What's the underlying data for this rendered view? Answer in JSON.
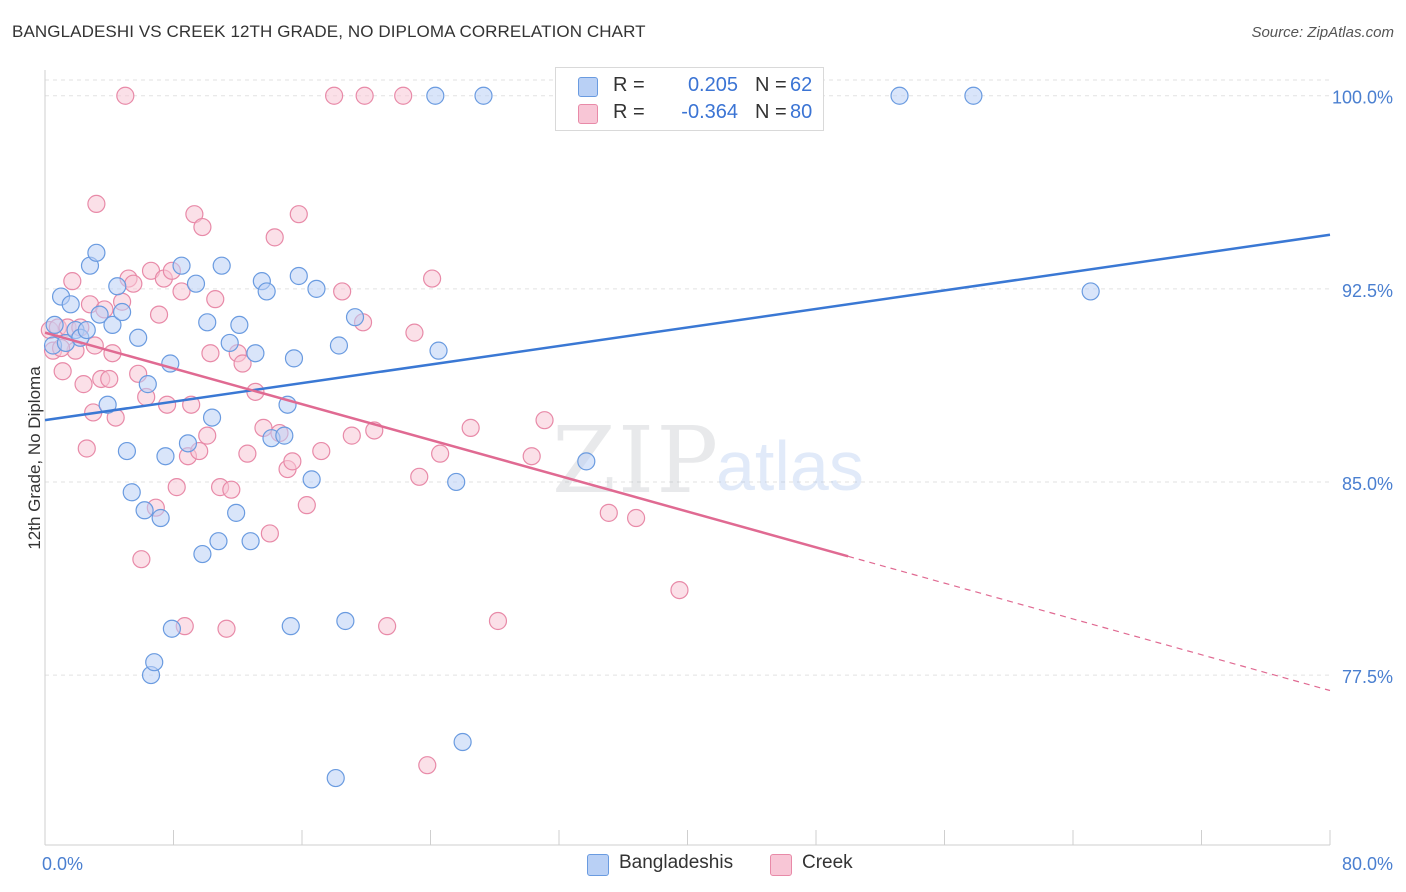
{
  "title": "BANGLADESHI VS CREEK 12TH GRADE, NO DIPLOMA CORRELATION CHART",
  "source": "Source: ZipAtlas.com",
  "watermark": {
    "zip": "ZIP",
    "atlas": "atlas"
  },
  "legend": {
    "r_label": "R =",
    "n_label": "N =",
    "rows": [
      {
        "r": "0.205",
        "n": "62",
        "fill": "#b9d0f5",
        "stroke": "#6a9be0"
      },
      {
        "r": "-0.364",
        "n": "80",
        "fill": "#f8c6d6",
        "stroke": "#e88aa8"
      }
    ]
  },
  "bottom_legend": [
    {
      "label": "Bangladeshis",
      "fill": "#b9d0f5",
      "stroke": "#6a9be0"
    },
    {
      "label": "Creek",
      "fill": "#f8c6d6",
      "stroke": "#e88aa8"
    }
  ],
  "chart_data": {
    "type": "scatter",
    "title": "BANGLADESHI VS CREEK 12TH GRADE, NO DIPLOMA CORRELATION CHART",
    "xlabel": "",
    "ylabel": "12th Grade, No Diploma",
    "xlim": [
      0,
      80
    ],
    "ylim": [
      70.9,
      101.0
    ],
    "x_tick_labels": [
      "0.0%",
      "80.0%"
    ],
    "y_ticks": [
      {
        "value": 100.0,
        "label": "100.0%"
      },
      {
        "value": 92.5,
        "label": "92.5%"
      },
      {
        "value": 85.0,
        "label": "85.0%"
      },
      {
        "value": 77.5,
        "label": "77.5%"
      }
    ],
    "grid": "horizontal dashed",
    "series": [
      {
        "name": "Bangladeshis",
        "color": "#6a9be0",
        "fill": "#b9d0f5",
        "trend": {
          "x": [
            0,
            80
          ],
          "y": [
            87.4,
            94.6
          ],
          "dashed_from": null,
          "line_color": "#3a78d4"
        },
        "points": [
          [
            0.5,
            90.3
          ],
          [
            0.6,
            91.1
          ],
          [
            1.0,
            92.2
          ],
          [
            1.3,
            90.4
          ],
          [
            1.6,
            91.9
          ],
          [
            1.9,
            90.9
          ],
          [
            2.2,
            90.6
          ],
          [
            2.6,
            90.9
          ],
          [
            2.8,
            93.4
          ],
          [
            3.2,
            93.9
          ],
          [
            3.4,
            91.5
          ],
          [
            3.9,
            88.0
          ],
          [
            4.2,
            91.1
          ],
          [
            4.5,
            92.6
          ],
          [
            4.8,
            91.6
          ],
          [
            5.1,
            86.2
          ],
          [
            5.4,
            84.6
          ],
          [
            5.8,
            90.6
          ],
          [
            6.2,
            83.9
          ],
          [
            6.4,
            88.8
          ],
          [
            6.6,
            77.5
          ],
          [
            6.8,
            78.0
          ],
          [
            7.2,
            83.6
          ],
          [
            7.5,
            86.0
          ],
          [
            7.8,
            89.6
          ],
          [
            7.9,
            79.3
          ],
          [
            8.5,
            93.4
          ],
          [
            8.9,
            86.5
          ],
          [
            9.4,
            92.7
          ],
          [
            9.8,
            82.2
          ],
          [
            10.1,
            91.2
          ],
          [
            10.4,
            87.5
          ],
          [
            10.8,
            82.7
          ],
          [
            11.0,
            93.4
          ],
          [
            11.5,
            90.4
          ],
          [
            11.9,
            83.8
          ],
          [
            12.1,
            91.1
          ],
          [
            12.8,
            82.7
          ],
          [
            13.1,
            90.0
          ],
          [
            13.5,
            92.8
          ],
          [
            13.8,
            92.4
          ],
          [
            14.1,
            86.7
          ],
          [
            14.9,
            86.8
          ],
          [
            15.1,
            88.0
          ],
          [
            15.3,
            79.4
          ],
          [
            15.5,
            89.8
          ],
          [
            15.8,
            93.0
          ],
          [
            16.6,
            85.1
          ],
          [
            16.9,
            92.5
          ],
          [
            18.1,
            73.5
          ],
          [
            18.3,
            90.3
          ],
          [
            18.7,
            79.6
          ],
          [
            19.3,
            91.4
          ],
          [
            24.5,
            90.1
          ],
          [
            25.6,
            85.0
          ],
          [
            26.0,
            74.9
          ],
          [
            27.3,
            100.0
          ],
          [
            33.7,
            85.8
          ],
          [
            65.1,
            92.4
          ],
          [
            53.2,
            100.0
          ],
          [
            57.8,
            100.0
          ],
          [
            24.3,
            100.0
          ]
        ]
      },
      {
        "name": "Creek",
        "color": "#e88aa8",
        "fill": "#f8c6d6",
        "trend": {
          "x": [
            0,
            80
          ],
          "y": [
            90.8,
            76.9
          ],
          "dashed_from": 50,
          "line_color": "#e06a92"
        },
        "points": [
          [
            0.3,
            90.9
          ],
          [
            0.5,
            90.1
          ],
          [
            0.8,
            91.0
          ],
          [
            1.1,
            89.3
          ],
          [
            1.4,
            91.0
          ],
          [
            1.7,
            92.8
          ],
          [
            1.9,
            90.1
          ],
          [
            2.2,
            91.0
          ],
          [
            2.4,
            88.8
          ],
          [
            2.6,
            86.3
          ],
          [
            2.8,
            91.9
          ],
          [
            3.0,
            87.7
          ],
          [
            3.2,
            95.8
          ],
          [
            3.5,
            89.0
          ],
          [
            3.7,
            91.7
          ],
          [
            4.0,
            89.0
          ],
          [
            4.2,
            90.0
          ],
          [
            4.4,
            87.5
          ],
          [
            4.8,
            92.0
          ],
          [
            5.2,
            92.9
          ],
          [
            5.5,
            92.7
          ],
          [
            5.8,
            89.2
          ],
          [
            6.0,
            82.0
          ],
          [
            6.3,
            88.3
          ],
          [
            6.6,
            93.2
          ],
          [
            6.9,
            84.0
          ],
          [
            7.1,
            91.5
          ],
          [
            7.4,
            92.9
          ],
          [
            7.6,
            88.0
          ],
          [
            7.9,
            93.2
          ],
          [
            8.2,
            84.8
          ],
          [
            8.5,
            92.4
          ],
          [
            8.7,
            79.4
          ],
          [
            8.9,
            86.0
          ],
          [
            9.1,
            88.0
          ],
          [
            9.3,
            95.4
          ],
          [
            9.6,
            86.2
          ],
          [
            9.8,
            94.9
          ],
          [
            10.1,
            86.8
          ],
          [
            10.3,
            90.0
          ],
          [
            10.6,
            92.1
          ],
          [
            10.9,
            84.8
          ],
          [
            11.3,
            79.3
          ],
          [
            11.6,
            84.7
          ],
          [
            12.0,
            90.0
          ],
          [
            12.3,
            89.6
          ],
          [
            12.6,
            86.1
          ],
          [
            13.1,
            88.5
          ],
          [
            13.6,
            87.1
          ],
          [
            14.0,
            83.0
          ],
          [
            14.3,
            94.5
          ],
          [
            14.6,
            86.9
          ],
          [
            15.1,
            85.5
          ],
          [
            15.4,
            85.8
          ],
          [
            15.8,
            95.4
          ],
          [
            16.3,
            84.1
          ],
          [
            17.2,
            86.2
          ],
          [
            18.0,
            100.0
          ],
          [
            18.5,
            92.4
          ],
          [
            19.1,
            86.8
          ],
          [
            19.8,
            91.2
          ],
          [
            20.5,
            87.0
          ],
          [
            21.3,
            79.4
          ],
          [
            22.3,
            100.0
          ],
          [
            23.0,
            90.8
          ],
          [
            23.3,
            85.2
          ],
          [
            24.1,
            92.9
          ],
          [
            24.6,
            86.1
          ],
          [
            26.5,
            87.1
          ],
          [
            28.2,
            79.6
          ],
          [
            30.3,
            86.0
          ],
          [
            31.1,
            87.4
          ],
          [
            35.1,
            83.8
          ],
          [
            36.8,
            83.6
          ],
          [
            39.5,
            80.8
          ],
          [
            5.0,
            100.0
          ],
          [
            23.8,
            74.0
          ],
          [
            19.9,
            100.0
          ],
          [
            3.1,
            90.3
          ],
          [
            1.0,
            90.2
          ]
        ]
      }
    ]
  }
}
